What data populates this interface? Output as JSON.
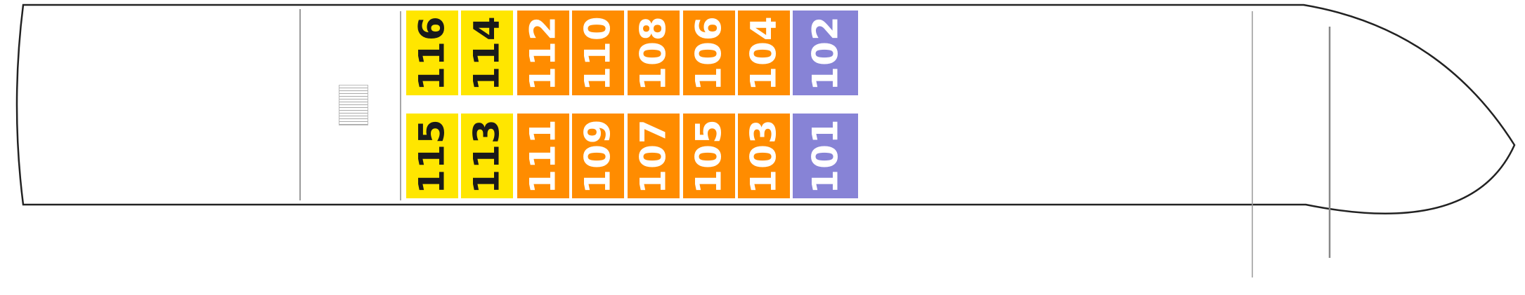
{
  "deck_plan": {
    "colors": {
      "yellow": "#FFE600",
      "orange": "#FF8C00",
      "purple": "#8783D6",
      "hull_outline": "#222222",
      "divider": "#999999"
    },
    "top_row": [
      {
        "number": "116",
        "category": "yellow"
      },
      {
        "number": "114",
        "category": "yellow"
      },
      {
        "number": "112",
        "category": "orange"
      },
      {
        "number": "110",
        "category": "orange"
      },
      {
        "number": "108",
        "category": "orange"
      },
      {
        "number": "106",
        "category": "orange"
      },
      {
        "number": "104",
        "category": "orange"
      },
      {
        "number": "102",
        "category": "purple"
      }
    ],
    "bottom_row": [
      {
        "number": "115",
        "category": "yellow"
      },
      {
        "number": "113",
        "category": "yellow"
      },
      {
        "number": "111",
        "category": "orange"
      },
      {
        "number": "109",
        "category": "orange"
      },
      {
        "number": "107",
        "category": "orange"
      },
      {
        "number": "105",
        "category": "orange"
      },
      {
        "number": "103",
        "category": "orange"
      },
      {
        "number": "101",
        "category": "purple"
      }
    ],
    "stairs_icon": "stairs-icon"
  }
}
